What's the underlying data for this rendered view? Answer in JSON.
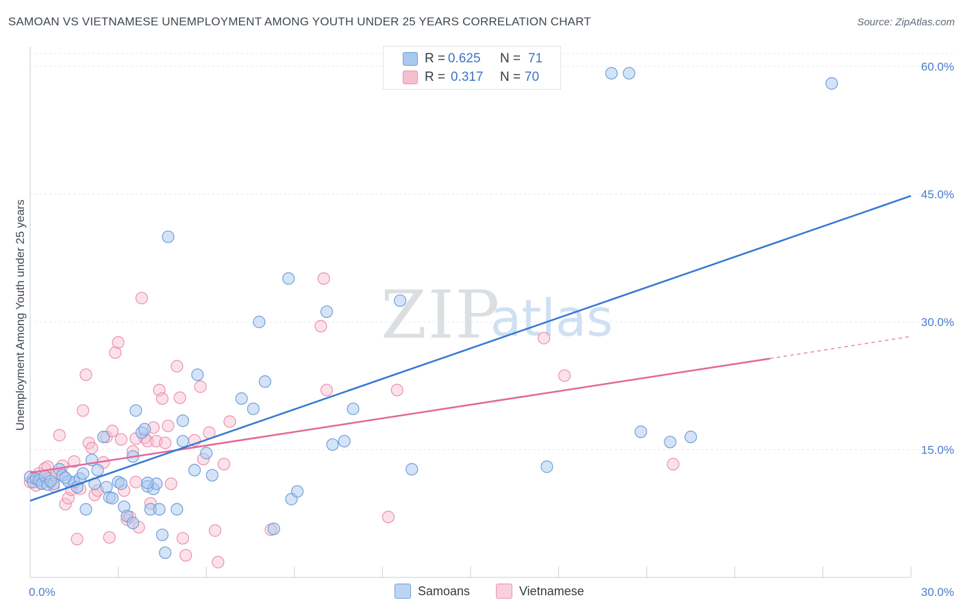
{
  "title": "SAMOAN VS VIETNAMESE UNEMPLOYMENT AMONG YOUTH UNDER 25 YEARS CORRELATION CHART",
  "source": "Source: ZipAtlas.com",
  "watermark": {
    "zip": "ZIP",
    "atlas": "atlas"
  },
  "legend_top": {
    "rows": [
      {
        "r_label": "R =",
        "r_value": "0.625",
        "n_label": "N =",
        "n_value": "71"
      },
      {
        "r_label": "R =",
        "r_value": "0.317",
        "n_label": "N =",
        "n_value": "70"
      }
    ]
  },
  "legend_bottom": {
    "samoans": "Samoans",
    "vietnamese": "Vietnamese"
  },
  "colors": {
    "samoan_fill": "#a9c8ef",
    "samoan_stroke": "#6f9fd9",
    "samoan_line": "#3477d4",
    "vietnamese_fill": "#f6bfd0",
    "vietnamese_stroke": "#ec8fae",
    "vietnamese_line": "#e2679a",
    "grid": "#e1e4e8",
    "tick_label": "#4a7cc9"
  },
  "chart_data": {
    "type": "scatter",
    "title": "SAMOAN VS VIETNAMESE UNEMPLOYMENT AMONG YOUTH UNDER 25 YEARS CORRELATION CHART",
    "xlabel": "",
    "ylabel": "Unemployment Among Youth under 25 years",
    "xlim": [
      0,
      30
    ],
    "ylim": [
      0,
      60
    ],
    "x_tick_labels": [
      "0.0%",
      "30.0%"
    ],
    "y_tick_labels": [
      "15.0%",
      "30.0%",
      "45.0%",
      "60.0%"
    ],
    "y_ticks": [
      15,
      30,
      45,
      60
    ],
    "grid": true,
    "legend_position": "top-center",
    "series": [
      {
        "name": "Samoans",
        "r": 0.625,
        "n": 71,
        "trend": {
          "x0": 0,
          "y0": 9.0,
          "x1": 30,
          "y1": 44.8
        },
        "points": [
          [
            0.0,
            11.8
          ],
          [
            0.1,
            11.2
          ],
          [
            0.2,
            11.6
          ],
          [
            0.3,
            11.4
          ],
          [
            0.4,
            11.0
          ],
          [
            0.5,
            11.9
          ],
          [
            0.6,
            10.9
          ],
          [
            0.8,
            11.0
          ],
          [
            1.0,
            12.7
          ],
          [
            1.1,
            12.0
          ],
          [
            1.3,
            11.3
          ],
          [
            1.5,
            11.2
          ],
          [
            1.6,
            10.6
          ],
          [
            1.7,
            11.6
          ],
          [
            1.8,
            12.2
          ],
          [
            1.9,
            8.0
          ],
          [
            2.1,
            13.8
          ],
          [
            2.2,
            11.0
          ],
          [
            2.3,
            12.6
          ],
          [
            2.5,
            16.5
          ],
          [
            2.6,
            10.6
          ],
          [
            2.7,
            9.4
          ],
          [
            2.8,
            9.3
          ],
          [
            3.0,
            11.2
          ],
          [
            3.1,
            11.0
          ],
          [
            3.2,
            8.3
          ],
          [
            3.3,
            7.2
          ],
          [
            3.5,
            6.4
          ],
          [
            3.5,
            14.2
          ],
          [
            3.6,
            19.6
          ],
          [
            3.8,
            17.0
          ],
          [
            3.9,
            17.4
          ],
          [
            4.0,
            10.7
          ],
          [
            4.1,
            8.0
          ],
          [
            4.2,
            10.4
          ],
          [
            4.3,
            11.0
          ],
          [
            4.4,
            8.0
          ],
          [
            4.5,
            5.0
          ],
          [
            4.6,
            2.9
          ],
          [
            4.7,
            40.0
          ],
          [
            5.0,
            8.0
          ],
          [
            5.2,
            18.4
          ],
          [
            5.2,
            16.0
          ],
          [
            5.6,
            12.6
          ],
          [
            5.7,
            23.8
          ],
          [
            6.0,
            14.6
          ],
          [
            6.2,
            12.0
          ],
          [
            7.2,
            21.0
          ],
          [
            7.6,
            19.8
          ],
          [
            7.8,
            30.0
          ],
          [
            8.0,
            23.0
          ],
          [
            8.3,
            5.7
          ],
          [
            8.8,
            35.1
          ],
          [
            8.9,
            9.2
          ],
          [
            9.1,
            10.1
          ],
          [
            10.1,
            31.2
          ],
          [
            10.3,
            15.6
          ],
          [
            10.7,
            16.0
          ],
          [
            11.0,
            19.8
          ],
          [
            12.6,
            32.5
          ],
          [
            13.0,
            12.7
          ],
          [
            17.6,
            13.0
          ],
          [
            19.8,
            59.2
          ],
          [
            20.4,
            59.2
          ],
          [
            20.8,
            17.1
          ],
          [
            21.8,
            15.9
          ],
          [
            22.5,
            16.5
          ],
          [
            27.3,
            58.0
          ],
          [
            4.0,
            11.1
          ],
          [
            1.2,
            11.7
          ],
          [
            0.7,
            11.3
          ]
        ]
      },
      {
        "name": "Vietnamese",
        "r": 0.317,
        "n": 70,
        "trend": {
          "x0": 0,
          "y0": 12.3,
          "x1": 25.2,
          "y1": 25.7
        },
        "trend_dashed": {
          "x0": 25.2,
          "y0": 25.7,
          "x1": 30,
          "y1": 28.3
        },
        "points": [
          [
            0.0,
            11.2
          ],
          [
            0.1,
            11.6
          ],
          [
            0.2,
            10.8
          ],
          [
            0.3,
            12.2
          ],
          [
            0.4,
            11.1
          ],
          [
            0.5,
            12.8
          ],
          [
            0.6,
            13.0
          ],
          [
            0.7,
            11.6
          ],
          [
            0.8,
            10.7
          ],
          [
            0.9,
            11.9
          ],
          [
            1.0,
            16.7
          ],
          [
            1.1,
            13.1
          ],
          [
            1.2,
            8.6
          ],
          [
            1.3,
            9.3
          ],
          [
            1.4,
            10.3
          ],
          [
            1.5,
            13.6
          ],
          [
            1.6,
            4.5
          ],
          [
            1.7,
            10.4
          ],
          [
            1.8,
            19.6
          ],
          [
            1.9,
            23.8
          ],
          [
            2.0,
            15.8
          ],
          [
            2.1,
            15.2
          ],
          [
            2.2,
            9.7
          ],
          [
            2.3,
            10.2
          ],
          [
            2.5,
            13.5
          ],
          [
            2.6,
            16.5
          ],
          [
            2.7,
            4.7
          ],
          [
            2.8,
            17.2
          ],
          [
            2.9,
            26.4
          ],
          [
            3.0,
            27.6
          ],
          [
            3.1,
            16.2
          ],
          [
            3.2,
            10.2
          ],
          [
            3.3,
            6.8
          ],
          [
            3.4,
            7.1
          ],
          [
            3.5,
            14.8
          ],
          [
            3.6,
            11.2
          ],
          [
            3.7,
            5.9
          ],
          [
            3.8,
            32.8
          ],
          [
            3.9,
            16.4
          ],
          [
            4.0,
            16.0
          ],
          [
            4.1,
            8.7
          ],
          [
            4.2,
            17.6
          ],
          [
            4.3,
            16.0
          ],
          [
            4.4,
            22.0
          ],
          [
            4.5,
            21.0
          ],
          [
            4.6,
            15.8
          ],
          [
            4.7,
            17.8
          ],
          [
            4.8,
            11.0
          ],
          [
            5.0,
            24.8
          ],
          [
            5.1,
            21.1
          ],
          [
            5.2,
            4.6
          ],
          [
            5.3,
            2.6
          ],
          [
            5.6,
            16.1
          ],
          [
            5.8,
            22.4
          ],
          [
            5.9,
            13.9
          ],
          [
            6.1,
            17.0
          ],
          [
            6.3,
            5.5
          ],
          [
            6.4,
            1.8
          ],
          [
            6.6,
            13.3
          ],
          [
            6.8,
            18.3
          ],
          [
            8.2,
            5.6
          ],
          [
            9.9,
            29.5
          ],
          [
            10.0,
            35.1
          ],
          [
            10.1,
            22.0
          ],
          [
            12.2,
            7.1
          ],
          [
            12.5,
            22.0
          ],
          [
            17.5,
            28.1
          ],
          [
            18.2,
            23.7
          ],
          [
            21.9,
            13.3
          ],
          [
            3.6,
            16.3
          ]
        ]
      }
    ]
  }
}
